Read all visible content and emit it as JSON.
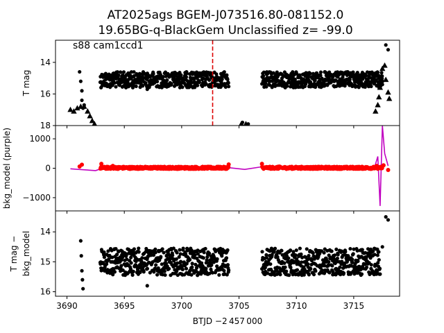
{
  "title": {
    "line1": "AT2025ags  BGEM-J073516.80-081152.0",
    "line2": "19.65BG-q-BlackGem Unclassified z= -99.0"
  },
  "chart_data": [
    {
      "type": "scatter",
      "panel": "top",
      "ylabel": "T mag",
      "annotation": "s88 cam1ccd1",
      "xlim": [
        3689,
        3719
      ],
      "ylim": [
        18,
        12.6
      ],
      "y_inverted": true,
      "yticks": [
        "14",
        "16",
        "18"
      ],
      "vline": {
        "x": 3702.7,
        "color": "#dd0000",
        "style": "dashed"
      },
      "series": [
        {
          "marker": "dot",
          "color": "#000000",
          "segments": [
            {
              "x_start": 3692.9,
              "x_end": 3704.1,
              "y_low": 14.6,
              "y_high": 15.6
            },
            {
              "x_start": 3707.0,
              "x_end": 3717.5,
              "y_low": 14.6,
              "y_high": 15.6
            }
          ],
          "points": [
            {
              "x": 3691.1,
              "y": 14.6
            },
            {
              "x": 3691.2,
              "y": 15.2
            },
            {
              "x": 3691.3,
              "y": 15.8
            },
            {
              "x": 3691.3,
              "y": 16.4
            },
            {
              "x": 3691.4,
              "y": 16.9
            },
            {
              "x": 3691.5,
              "y": 16.7
            },
            {
              "x": 3697.0,
              "y": 15.7
            },
            {
              "x": 3705.3,
              "y": 17.8
            },
            {
              "x": 3705.8,
              "y": 17.9
            },
            {
              "x": 3717.8,
              "y": 12.9
            },
            {
              "x": 3718.0,
              "y": 13.2
            },
            {
              "x": 3717.5,
              "y": 15.4
            }
          ]
        },
        {
          "marker": "triangle",
          "color": "#000000",
          "points": [
            {
              "x": 3690.3,
              "y": 17.0
            },
            {
              "x": 3690.6,
              "y": 17.1
            },
            {
              "x": 3690.9,
              "y": 16.9
            },
            {
              "x": 3691.2,
              "y": 16.8
            },
            {
              "x": 3691.5,
              "y": 16.8
            },
            {
              "x": 3691.8,
              "y": 17.1
            },
            {
              "x": 3692.0,
              "y": 17.4
            },
            {
              "x": 3692.2,
              "y": 17.7
            },
            {
              "x": 3692.4,
              "y": 17.9
            },
            {
              "x": 3705.2,
              "y": 17.9
            },
            {
              "x": 3705.6,
              "y": 17.9
            },
            {
              "x": 3716.9,
              "y": 17.1
            },
            {
              "x": 3717.1,
              "y": 16.7
            },
            {
              "x": 3717.2,
              "y": 16.2
            },
            {
              "x": 3717.3,
              "y": 15.6
            },
            {
              "x": 3717.4,
              "y": 14.9
            },
            {
              "x": 3717.5,
              "y": 14.4
            },
            {
              "x": 3717.7,
              "y": 14.2
            },
            {
              "x": 3717.8,
              "y": 15.1
            },
            {
              "x": 3718.0,
              "y": 15.9
            },
            {
              "x": 3718.1,
              "y": 16.3
            }
          ]
        }
      ]
    },
    {
      "type": "line",
      "panel": "middle",
      "ylabel": "bkg_model (purple)",
      "xlim": [
        3689,
        3719
      ],
      "ylim": [
        -1450,
        1450
      ],
      "yticks": [
        "1000",
        "0",
        "−1000"
      ],
      "series": [
        {
          "style": "line",
          "color": "#c000c0",
          "points": [
            {
              "x": 3690.3,
              "y": -20
            },
            {
              "x": 3691.0,
              "y": -40
            },
            {
              "x": 3692.5,
              "y": -80
            },
            {
              "x": 3693.5,
              "y": 60
            },
            {
              "x": 3695.0,
              "y": 20
            },
            {
              "x": 3697.0,
              "y": -40
            },
            {
              "x": 3699.0,
              "y": -10
            },
            {
              "x": 3701.0,
              "y": -20
            },
            {
              "x": 3703.0,
              "y": -10
            },
            {
              "x": 3704.1,
              "y": 20
            },
            {
              "x": 3705.5,
              "y": -40
            },
            {
              "x": 3707.0,
              "y": 50
            },
            {
              "x": 3709.0,
              "y": 0
            },
            {
              "x": 3712.0,
              "y": -10
            },
            {
              "x": 3715.0,
              "y": 0
            },
            {
              "x": 3716.8,
              "y": 10
            },
            {
              "x": 3717.1,
              "y": 400
            },
            {
              "x": 3717.3,
              "y": -1280
            },
            {
              "x": 3717.5,
              "y": 1450
            },
            {
              "x": 3717.7,
              "y": 500
            },
            {
              "x": 3718.0,
              "y": 80
            }
          ]
        },
        {
          "style": "dots",
          "color": "#ff0000",
          "points": [
            {
              "x": 3691.1,
              "y": 60
            },
            {
              "x": 3691.3,
              "y": 120
            },
            {
              "x": 3693.0,
              "y": 150
            },
            {
              "x": 3694.0,
              "y": 80
            },
            {
              "x": 3695.5,
              "y": 20
            },
            {
              "x": 3697.0,
              "y": 0
            },
            {
              "x": 3699.0,
              "y": 10
            },
            {
              "x": 3701.0,
              "y": 0
            },
            {
              "x": 3703.0,
              "y": 10
            },
            {
              "x": 3704.1,
              "y": 130
            },
            {
              "x": 3707.0,
              "y": 150
            },
            {
              "x": 3708.5,
              "y": 60
            },
            {
              "x": 3710.0,
              "y": 20
            },
            {
              "x": 3712.0,
              "y": 10
            },
            {
              "x": 3714.0,
              "y": 10
            },
            {
              "x": 3716.0,
              "y": 20
            },
            {
              "x": 3717.0,
              "y": 80
            },
            {
              "x": 3717.6,
              "y": 100
            },
            {
              "x": 3718.0,
              "y": -60
            }
          ],
          "segments": [
            {
              "x_start": 3692.9,
              "x_end": 3704.1,
              "y_low": -30,
              "y_high": 60
            },
            {
              "x_start": 3707.0,
              "x_end": 3717.5,
              "y_low": -30,
              "y_high": 60
            }
          ]
        }
      ]
    },
    {
      "type": "scatter",
      "panel": "bottom",
      "ylabel_line1": "T mag −",
      "ylabel_line2": "bkg_model",
      "xlabel": "BTJD −2 457 000",
      "xlim": [
        3689,
        3719
      ],
      "ylim": [
        16.15,
        13.3
      ],
      "y_inverted": true,
      "yticks": [
        "14",
        "15",
        "16"
      ],
      "xticks": [
        "3690",
        "3695",
        "3700",
        "3705",
        "3710",
        "3715"
      ],
      "xtick_values": [
        3690,
        3695,
        3700,
        3705,
        3710,
        3715
      ],
      "series": [
        {
          "marker": "dot",
          "color": "#000000",
          "segments": [
            {
              "x_start": 3692.9,
              "x_end": 3704.1,
              "y_low": 14.55,
              "y_high": 15.45
            },
            {
              "x_start": 3707.0,
              "x_end": 3717.3,
              "y_low": 14.55,
              "y_high": 15.45
            }
          ],
          "points": [
            {
              "x": 3691.2,
              "y": 14.3
            },
            {
              "x": 3691.25,
              "y": 14.8
            },
            {
              "x": 3691.3,
              "y": 15.3
            },
            {
              "x": 3691.35,
              "y": 15.6
            },
            {
              "x": 3691.4,
              "y": 15.9
            },
            {
              "x": 3697.0,
              "y": 15.8
            },
            {
              "x": 3717.5,
              "y": 14.5
            },
            {
              "x": 3717.8,
              "y": 13.5
            },
            {
              "x": 3718.0,
              "y": 13.6
            }
          ]
        }
      ]
    }
  ]
}
